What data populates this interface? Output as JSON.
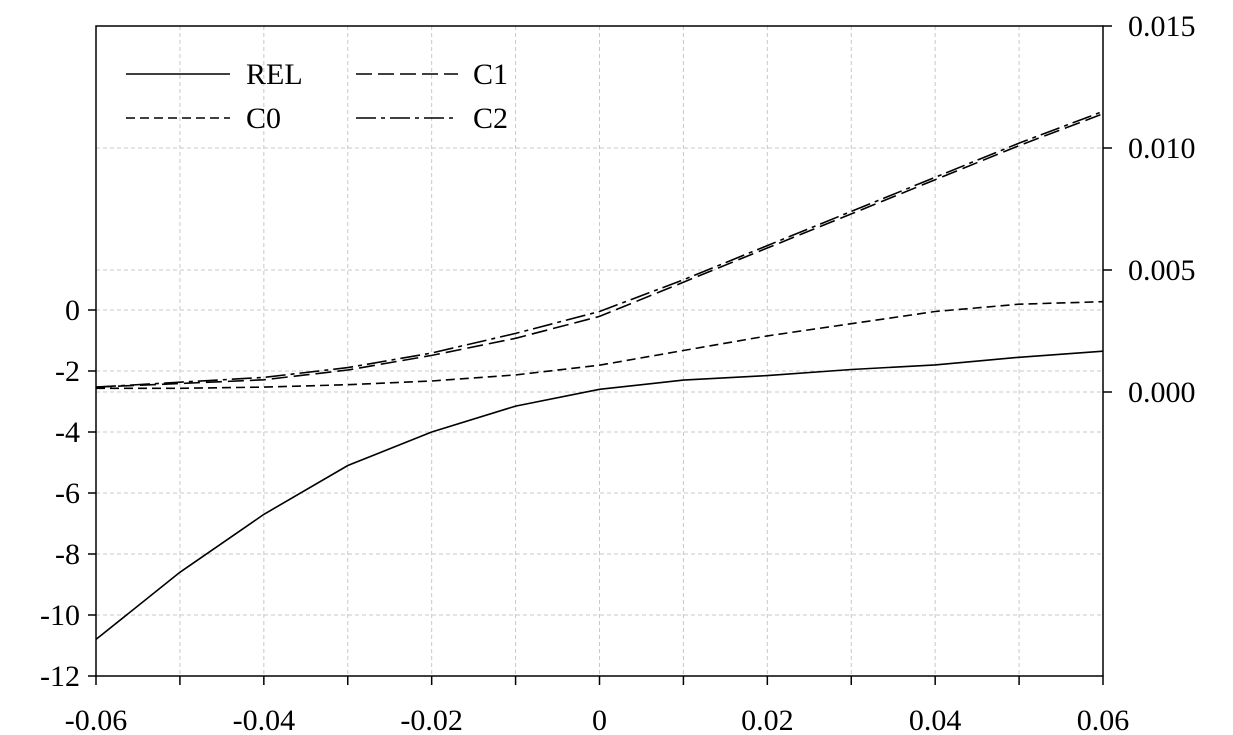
{
  "chart_data": {
    "type": "line",
    "x": [
      -0.06,
      -0.05,
      -0.04,
      -0.03,
      -0.02,
      -0.01,
      0,
      0.01,
      0.02,
      0.03,
      0.04,
      0.05,
      0.06
    ],
    "xlim": [
      -0.06,
      0.06
    ],
    "xticks": [
      -0.06,
      -0.04,
      -0.02,
      0,
      0.02,
      0.04,
      0.06
    ],
    "xtick_labels": [
      "-0.06",
      "-0.04",
      "-0.02",
      "0",
      "0.02",
      "0.04",
      "0.06"
    ],
    "left_axis": {
      "ylim": [
        -12,
        0
      ],
      "ticks": [
        0,
        -2,
        -4,
        -6,
        -8,
        -10,
        -12
      ],
      "tick_labels": [
        "0",
        "-2",
        "-4",
        "-6",
        "-8",
        "-10",
        "-12"
      ]
    },
    "right_axis": {
      "ylim": [
        0,
        0.015
      ],
      "ticks": [
        0.0,
        0.005,
        0.01,
        0.015
      ],
      "tick_labels": [
        "0.000",
        "0.005",
        "0.010",
        "0.015"
      ]
    },
    "grid": true,
    "legend_position": "top-left",
    "series": [
      {
        "name": "REL",
        "axis": "left",
        "dash": "",
        "values": [
          -10.8,
          -8.6,
          -6.7,
          -5.1,
          -4.0,
          -3.15,
          -2.6,
          -2.3,
          -2.15,
          -1.95,
          -1.8,
          -1.55,
          -1.35
        ]
      },
      {
        "name": "C0",
        "axis": "right",
        "dash": "9 5",
        "values": [
          0.00015,
          0.00015,
          0.0002,
          0.0003,
          0.00045,
          0.0007,
          0.0011,
          0.0017,
          0.0023,
          0.0028,
          0.0033,
          0.0036,
          0.0037
        ]
      },
      {
        "name": "C1",
        "axis": "right",
        "dash": "16 6",
        "values": [
          0.0002,
          0.00035,
          0.0005,
          0.0009,
          0.0015,
          0.0022,
          0.0031,
          0.0045,
          0.0059,
          0.0073,
          0.0087,
          0.0101,
          0.0114
        ]
      },
      {
        "name": "C2",
        "axis": "right",
        "dash": "20 5 4 5",
        "values": [
          0.0002,
          0.0004,
          0.0006,
          0.001,
          0.0016,
          0.0024,
          0.0033,
          0.0046,
          0.006,
          0.0074,
          0.0088,
          0.0102,
          0.0115
        ]
      }
    ]
  }
}
